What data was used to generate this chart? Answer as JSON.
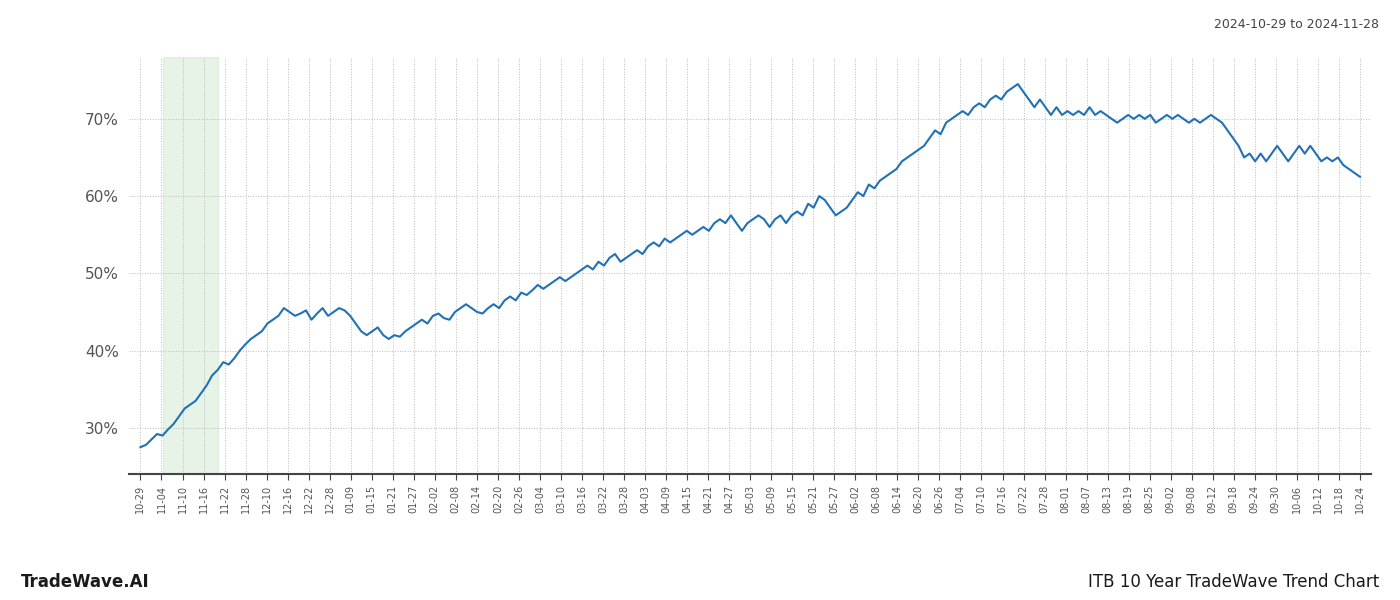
{
  "title_top_right": "2024-10-29 to 2024-11-28",
  "title_bottom_left": "TradeWave.AI",
  "title_bottom_right": "ITB 10 Year TradeWave Trend Chart",
  "line_color": "#2171b5",
  "line_width": 1.5,
  "highlight_color": "#c8e6c9",
  "highlight_alpha": 0.45,
  "highlight_xstart": 4,
  "highlight_xend": 14,
  "grid_color": "#bbbbbb",
  "grid_linestyle": ":",
  "background_color": "#ffffff",
  "ylim": [
    24,
    78
  ],
  "yticks": [
    30,
    40,
    50,
    60,
    70
  ],
  "x_labels": [
    "10-29",
    "11-04",
    "11-10",
    "11-16",
    "11-22",
    "11-28",
    "12-10",
    "12-16",
    "12-22",
    "12-28",
    "01-09",
    "01-15",
    "01-21",
    "01-27",
    "02-02",
    "02-08",
    "02-14",
    "02-20",
    "02-26",
    "03-04",
    "03-10",
    "03-16",
    "03-22",
    "03-28",
    "04-03",
    "04-09",
    "04-15",
    "04-21",
    "04-27",
    "05-03",
    "05-09",
    "05-15",
    "05-21",
    "05-27",
    "06-02",
    "06-08",
    "06-14",
    "06-20",
    "06-26",
    "07-04",
    "07-10",
    "07-16",
    "07-22",
    "07-28",
    "08-01",
    "08-07",
    "08-13",
    "08-19",
    "08-25",
    "09-02",
    "09-08",
    "09-12",
    "09-18",
    "09-24",
    "09-30",
    "10-06",
    "10-12",
    "10-18",
    "10-24"
  ],
  "y_values": [
    27.5,
    27.8,
    28.5,
    29.2,
    29.0,
    29.8,
    30.5,
    31.5,
    32.5,
    33.0,
    33.5,
    34.5,
    35.5,
    36.8,
    37.5,
    38.5,
    38.2,
    39.0,
    40.0,
    40.8,
    41.5,
    42.0,
    42.5,
    43.5,
    44.0,
    44.5,
    45.5,
    45.0,
    44.5,
    44.8,
    45.2,
    44.0,
    44.8,
    45.5,
    44.5,
    45.0,
    45.5,
    45.2,
    44.5,
    43.5,
    42.5,
    42.0,
    42.5,
    43.0,
    42.0,
    41.5,
    42.0,
    41.8,
    42.5,
    43.0,
    43.5,
    44.0,
    43.5,
    44.5,
    44.8,
    44.2,
    44.0,
    45.0,
    45.5,
    46.0,
    45.5,
    45.0,
    44.8,
    45.5,
    46.0,
    45.5,
    46.5,
    47.0,
    46.5,
    47.5,
    47.2,
    47.8,
    48.5,
    48.0,
    48.5,
    49.0,
    49.5,
    49.0,
    49.5,
    50.0,
    50.5,
    51.0,
    50.5,
    51.5,
    51.0,
    52.0,
    52.5,
    51.5,
    52.0,
    52.5,
    53.0,
    52.5,
    53.5,
    54.0,
    53.5,
    54.5,
    54.0,
    54.5,
    55.0,
    55.5,
    55.0,
    55.5,
    56.0,
    55.5,
    56.5,
    57.0,
    56.5,
    57.5,
    56.5,
    55.5,
    56.5,
    57.0,
    57.5,
    57.0,
    56.0,
    57.0,
    57.5,
    56.5,
    57.5,
    58.0,
    57.5,
    59.0,
    58.5,
    60.0,
    59.5,
    58.5,
    57.5,
    58.0,
    58.5,
    59.5,
    60.5,
    60.0,
    61.5,
    61.0,
    62.0,
    62.5,
    63.0,
    63.5,
    64.5,
    65.0,
    65.5,
    66.0,
    66.5,
    67.5,
    68.5,
    68.0,
    69.5,
    70.0,
    70.5,
    71.0,
    70.5,
    71.5,
    72.0,
    71.5,
    72.5,
    73.0,
    72.5,
    73.5,
    74.0,
    74.5,
    73.5,
    72.5,
    71.5,
    72.5,
    71.5,
    70.5,
    71.5,
    70.5,
    71.0,
    70.5,
    71.0,
    70.5,
    71.5,
    70.5,
    71.0,
    70.5,
    70.0,
    69.5,
    70.0,
    70.5,
    70.0,
    70.5,
    70.0,
    70.5,
    69.5,
    70.0,
    70.5,
    70.0,
    70.5,
    70.0,
    69.5,
    70.0,
    69.5,
    70.0,
    70.5,
    70.0,
    69.5,
    68.5,
    67.5,
    66.5,
    65.0,
    65.5,
    64.5,
    65.5,
    64.5,
    65.5,
    66.5,
    65.5,
    64.5,
    65.5,
    66.5,
    65.5,
    66.5,
    65.5,
    64.5,
    65.0,
    64.5,
    65.0,
    64.0,
    63.5,
    63.0,
    62.5
  ]
}
